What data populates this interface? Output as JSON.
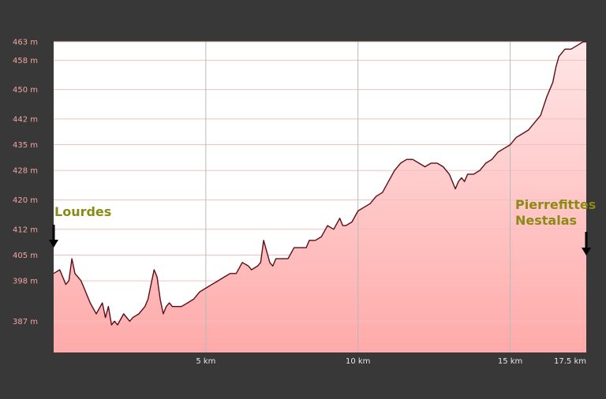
{
  "colors": {
    "background": "#383838",
    "plot_background": "#ffffff",
    "area_top": "#ffe6e6",
    "area_bottom": "#ffaaaa",
    "line": "#5a0e14",
    "h_grid": "#f3c0c0",
    "v_grid": "#b8b8b8",
    "label": "#8a8a14",
    "y_tick": "#f2a3a3",
    "x_tick": "#e6e6e6",
    "marker": "#000000"
  },
  "chart_data": {
    "type": "area",
    "title": "",
    "xlabel": "",
    "ylabel": "",
    "xlim": [
      0,
      17.5
    ],
    "ylim": [
      378.5,
      463
    ],
    "grid": true,
    "y_ticks": [
      {
        "value": 463,
        "label": "463 m"
      },
      {
        "value": 458,
        "label": "458 m"
      },
      {
        "value": 450,
        "label": "450 m"
      },
      {
        "value": 442,
        "label": "442 m"
      },
      {
        "value": 435,
        "label": "435 m"
      },
      {
        "value": 428,
        "label": "428 m"
      },
      {
        "value": 420,
        "label": "420 m"
      },
      {
        "value": 412,
        "label": "412 m"
      },
      {
        "value": 405,
        "label": "405 m"
      },
      {
        "value": 398,
        "label": "398 m"
      },
      {
        "value": 387,
        "label": "387 m"
      }
    ],
    "x_ticks": [
      {
        "value": 5,
        "label": "5 km"
      },
      {
        "value": 10,
        "label": "10 km"
      },
      {
        "value": 15,
        "label": "15 km"
      },
      {
        "value": 17.5,
        "label": "17.5 km"
      }
    ],
    "annotations": [
      {
        "text": "Lourdes",
        "x": 0,
        "arrow": true
      },
      {
        "text": "Pierrefittes",
        "x": 17.5,
        "arrow": true
      },
      {
        "text": "Nestalas",
        "x": 17.5,
        "arrow": false
      }
    ],
    "series": [
      {
        "x": [
          0,
          0.2,
          0.4,
          0.5,
          0.6,
          0.7,
          0.8,
          0.9,
          1.0,
          1.1,
          1.2,
          1.4,
          1.6,
          1.7,
          1.8,
          1.9,
          2.0,
          2.1,
          2.3,
          2.5,
          2.6,
          2.8,
          3.0,
          3.1,
          3.2,
          3.3,
          3.4,
          3.5,
          3.6,
          3.7,
          3.8,
          3.9,
          4.0,
          4.2,
          4.4,
          4.6,
          4.8,
          5.0,
          5.2,
          5.4,
          5.6,
          5.8,
          6.0,
          6.2,
          6.4,
          6.5,
          6.7,
          6.8,
          6.9,
          7.0,
          7.1,
          7.2,
          7.3,
          7.5,
          7.7,
          7.9,
          8.1,
          8.3,
          8.4,
          8.6,
          8.8,
          9.0,
          9.2,
          9.4,
          9.5,
          9.6,
          9.8,
          10.0,
          10.2,
          10.4,
          10.6,
          10.8,
          11.0,
          11.2,
          11.4,
          11.6,
          11.8,
          12.0,
          12.2,
          12.4,
          12.6,
          12.8,
          13.0,
          13.1,
          13.2,
          13.3,
          13.4,
          13.5,
          13.6,
          13.8,
          14.0,
          14.2,
          14.4,
          14.6,
          14.8,
          15.0,
          15.2,
          15.4,
          15.6,
          15.8,
          16.0,
          16.2,
          16.4,
          16.5,
          16.6,
          16.8,
          17.0,
          17.2,
          17.4,
          17.5
        ],
        "y": [
          400,
          401,
          397,
          398,
          404,
          400,
          399,
          398,
          396,
          394,
          392,
          389,
          392,
          388,
          391,
          386,
          387,
          386,
          389,
          387,
          388,
          389,
          391,
          393,
          397,
          401,
          399,
          393,
          389,
          391,
          392,
          391,
          391,
          391,
          392,
          393,
          395,
          396,
          397,
          398,
          399,
          400,
          400,
          403,
          402,
          401,
          402,
          403,
          409,
          406,
          403,
          402,
          404,
          404,
          404,
          407,
          407,
          407,
          409,
          409,
          410,
          413,
          412,
          415,
          413,
          413,
          414,
          417,
          418,
          419,
          421,
          422,
          425,
          428,
          430,
          431,
          431,
          430,
          429,
          430,
          430,
          429,
          427,
          425,
          423,
          425,
          426,
          425,
          427,
          427,
          428,
          430,
          431,
          433,
          434,
          435,
          437,
          438,
          439,
          441,
          443,
          448,
          452,
          456,
          459,
          461,
          461,
          462,
          463,
          463
        ]
      }
    ]
  }
}
